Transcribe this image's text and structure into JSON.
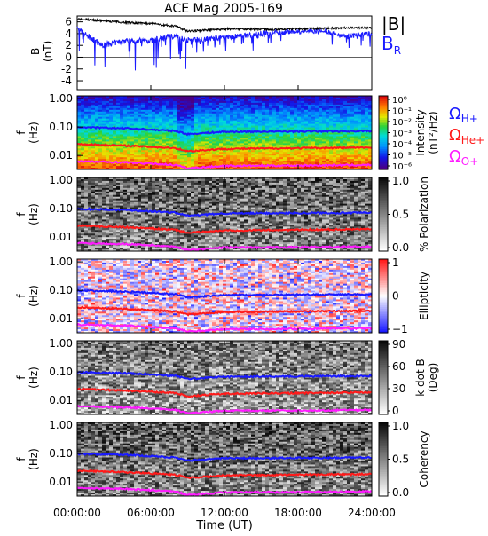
{
  "title": "ACE Mag 2005-169",
  "x_axis": {
    "label": "Time (UT)",
    "ticks": [
      "00:00:00",
      "06:00:00",
      "12:00:00",
      "18:00:00",
      "24:00:00"
    ]
  },
  "freq_axis": {
    "label": "f",
    "unit": "(Hz)",
    "ticks": [
      "1.00",
      "0.10",
      "0.01"
    ]
  },
  "colors": {
    "B_mag": "#000000",
    "B_R": "#1a1aff",
    "omega_H": "#1a1aff",
    "omega_He": "#ff1a1a",
    "omega_O": "#ff1aff"
  },
  "chart_data": [
    {
      "type": "line",
      "ylabel": "B",
      "yunit": "(nT)",
      "ylim": [
        -5.5,
        7
      ],
      "yticks": [
        "6",
        "4",
        "2",
        "0",
        "-2",
        "-4"
      ],
      "x_hours": [
        0,
        2,
        4,
        6,
        8,
        9,
        12,
        16,
        20,
        22,
        24
      ],
      "series": [
        {
          "name": "|B|",
          "values": [
            6.5,
            6.2,
            5.9,
            5.7,
            5.3,
            4.4,
            4.8,
            4.7,
            4.9,
            5.0,
            5.0
          ]
        },
        {
          "name": "B_R",
          "values": [
            4.8,
            2.0,
            2.8,
            2.8,
            3.7,
            2.9,
            3.3,
            4.2,
            4.5,
            3.5,
            3.9
          ]
        }
      ]
    },
    {
      "type": "heatmap",
      "name": "Intensity",
      "colorbar_label": "Intensity",
      "colorbar_unit": "(nT²/Hz)",
      "colorbar_ticks": [
        "10⁰",
        "10⁻¹",
        "10⁻²",
        "10⁻³",
        "10⁻⁴",
        "10⁻⁵",
        "10⁻⁶"
      ],
      "legend": [
        "Ω",
        "H+",
        "Ω",
        "He+",
        "Ω",
        "O+"
      ]
    },
    {
      "type": "heatmap",
      "name": "Polarization",
      "colorbar_label": "% Polarization",
      "colorbar_ticks": [
        "1.0",
        "0.5",
        "0.0"
      ]
    },
    {
      "type": "heatmap",
      "name": "Ellipticity",
      "colorbar_label": "Ellipticity",
      "colorbar_ticks": [
        "1",
        "0",
        "−1"
      ]
    },
    {
      "type": "heatmap",
      "name": "k dot B",
      "colorbar_label": "k dot B",
      "colorbar_unit": "(Deg)",
      "colorbar_ticks": [
        "90",
        "60",
        "30",
        "0"
      ]
    },
    {
      "type": "heatmap",
      "name": "Coherency",
      "colorbar_label": "Coherency",
      "colorbar_ticks": [
        "1.0",
        "0.5",
        "0.0"
      ]
    }
  ],
  "gyrofrequencies": {
    "x_hours": [
      0,
      4,
      8,
      9,
      12,
      18,
      24
    ],
    "omega_H": [
      0.098,
      0.09,
      0.072,
      0.056,
      0.068,
      0.07,
      0.072
    ],
    "omega_He": [
      0.025,
      0.022,
      0.018,
      0.014,
      0.017,
      0.018,
      0.019
    ],
    "omega_O": [
      0.0062,
      0.0057,
      0.0046,
      0.0035,
      0.0043,
      0.0044,
      0.0046
    ]
  }
}
